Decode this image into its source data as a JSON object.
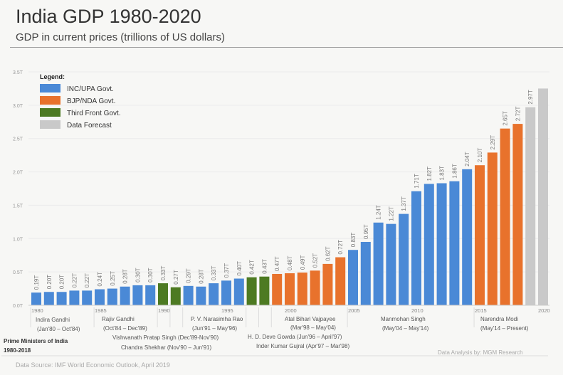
{
  "title": "India GDP 1980-2020",
  "subtitle": "GDP in current prices (trillions of US dollars)",
  "footer": {
    "source": "Data Source: IMF World Economic Outlook, April 2019",
    "analysis": "Data Analysis by: MGM Research",
    "pm_heading_1": "Prime Ministers of India",
    "pm_heading_2": "1980-2018"
  },
  "colors": {
    "INC": "#4a89d6",
    "BJP": "#e8722c",
    "TF": "#4d7a22",
    "FC": "#c9c9c9"
  },
  "chart_data": {
    "type": "bar",
    "title": "India GDP 1980-2020",
    "ylim": [
      0,
      3.5
    ],
    "yticks": [
      "0.0T",
      "0.5T",
      "1.0T",
      "1.5T",
      "2.0T",
      "2.5T",
      "3.0T",
      "3.5T"
    ],
    "grid": true,
    "legend": {
      "title": "Legend:",
      "position": "top-left",
      "entries": [
        {
          "key": "INC",
          "label": "INC/UPA Govt."
        },
        {
          "key": "BJP",
          "label": "BJP/NDA Govt."
        },
        {
          "key": "TF",
          "label": "Third Front Govt."
        },
        {
          "key": "FC",
          "label": "Data Forecast"
        }
      ]
    },
    "categories": [
      1980,
      1981,
      1982,
      1983,
      1984,
      1985,
      1986,
      1987,
      1988,
      1989,
      1990,
      1991,
      1992,
      1993,
      1994,
      1995,
      1996,
      1997,
      1998,
      1999,
      2000,
      2001,
      2002,
      2003,
      2004,
      2005,
      2006,
      2007,
      2008,
      2009,
      2010,
      2011,
      2012,
      2013,
      2014,
      2015,
      2016,
      2017,
      2018,
      2019,
      2020
    ],
    "year_ticks": [
      "1980",
      "1985",
      "1990",
      "1995",
      "2000",
      "2005",
      "2010",
      "2015",
      "2020"
    ],
    "values": [
      0.19,
      0.2,
      0.2,
      0.22,
      0.22,
      0.24,
      0.25,
      0.28,
      0.3,
      0.3,
      0.33,
      0.27,
      0.29,
      0.28,
      0.33,
      0.37,
      0.4,
      0.42,
      0.43,
      0.47,
      0.48,
      0.49,
      0.52,
      0.62,
      0.72,
      0.83,
      0.95,
      1.24,
      1.22,
      1.37,
      1.71,
      1.82,
      1.83,
      1.86,
      2.04,
      2.1,
      2.29,
      2.65,
      2.72,
      2.97,
      3.25
    ],
    "labels": [
      "0.19T",
      "0.20T",
      "0.20T",
      "0.22T",
      "0.22T",
      "0.24T",
      "0.25T",
      "0.28T",
      "0.30T",
      "0.30T",
      "0.33T",
      "0.27T",
      "0.29T",
      "0.28T",
      "0.33T",
      "0.37T",
      "0.40T",
      "0.42T",
      "0.43T",
      "0.47T",
      "0.48T",
      "0.49T",
      "0.52T",
      "0.62T",
      "0.72T",
      "0.83T",
      "0.95T",
      "1.24T",
      "1.22T",
      "1.37T",
      "1.71T",
      "1.82T",
      "1.83T",
      "1.86T",
      "2.04T",
      "2.10T",
      "2.29T",
      "2.65T",
      "2.72T",
      "2.97T",
      ""
    ],
    "govt": [
      "INC",
      "INC",
      "INC",
      "INC",
      "INC",
      "INC",
      "INC",
      "INC",
      "INC",
      "INC",
      "TF",
      "TF",
      "INC",
      "INC",
      "INC",
      "INC",
      "INC",
      "TF",
      "TF",
      "BJP",
      "BJP",
      "BJP",
      "BJP",
      "BJP",
      "BJP",
      "INC",
      "INC",
      "INC",
      "INC",
      "INC",
      "INC",
      "INC",
      "INC",
      "INC",
      "INC",
      "BJP",
      "BJP",
      "BJP",
      "BJP",
      "FC",
      "FC"
    ],
    "annotations": [
      "Indira Gandhi",
      "(Jan'80 – Oct'84)",
      "Rajiv Gandhi",
      "(Oct'84 – Dec'89)",
      "Vishwanath Pratap Singh (Dec'89-Nov'90)",
      "Chandra Shekhar (Nov'90 – Jun'91)",
      "P. V. Narasimha Rao",
      "(Jun'91 – May'96)",
      "H. D. Deve Gowda (Jun'96 – April'97)",
      "Inder Kumar Gujral (Apr'97 – Mar'98)",
      "Atal Bihari Vajpayee",
      "(Mar'98 – May'04)",
      "Manmohan Singh",
      "(May'04 – May'14)",
      "Narendra Modi",
      "(May'14 – Present)"
    ]
  }
}
